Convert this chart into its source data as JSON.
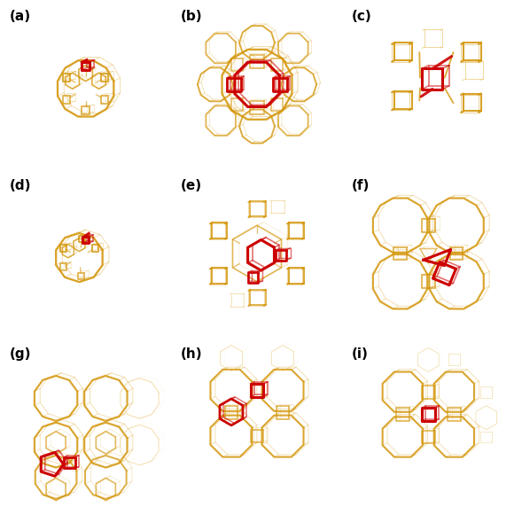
{
  "background": "#ffffff",
  "gold": "#D4960A",
  "gold_faint": "#E8C060",
  "red": "#CC0000",
  "label_fontsize": 11,
  "fig_width": 5.8,
  "fig_height": 5.72,
  "labels": [
    "(a)",
    "(b)",
    "(c)",
    "(d)",
    "(e)",
    "(f)",
    "(g)",
    "(h)",
    "(i)"
  ]
}
